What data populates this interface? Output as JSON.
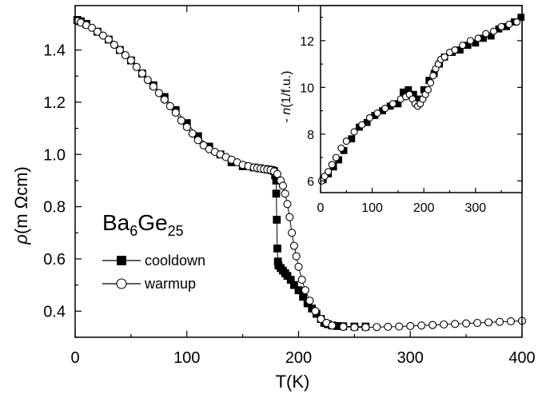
{
  "chart_data": [
    {
      "type": "scatter",
      "title": "",
      "xlabel": "T(K)",
      "ylabel": "ρ(m Ωcm)",
      "ylabel_parts": {
        "symbol": "ρ",
        "unit": "(m Ωcm)"
      },
      "xlim": [
        0,
        400
      ],
      "ylim": [
        0.3,
        1.57
      ],
      "xticks": [
        0,
        100,
        200,
        300,
        400
      ],
      "yticks": [
        0.4,
        0.6,
        0.8,
        1.0,
        1.2,
        1.4
      ],
      "xtick_labels": [
        "0",
        "100",
        "200",
        "300",
        "400"
      ],
      "ytick_labels": [
        "0.4",
        "0.6",
        "0.8",
        "1.0",
        "1.2",
        "1.4"
      ],
      "grid": false,
      "sample_label": {
        "base1": "Ba",
        "sub1": "6",
        "base2": "Ge",
        "sub2": "25"
      },
      "legend": {
        "placement": "lower-left"
      },
      "series": [
        {
          "name": "cooldown",
          "marker": "filled-square",
          "color": "#000000",
          "connected": true,
          "x": [
            2,
            5,
            10,
            20,
            30,
            40,
            50,
            60,
            70,
            80,
            90,
            100,
            110,
            120,
            130,
            140,
            150,
            160,
            165,
            170,
            173,
            176,
            178,
            179,
            180,
            180,
            180.5,
            181,
            181.5,
            182,
            184,
            186,
            188,
            190,
            193,
            196,
            200,
            204,
            208,
            212,
            216,
            220,
            223,
            226,
            230,
            235,
            240,
            250,
            260
          ],
          "y": [
            1.515,
            1.51,
            1.5,
            1.47,
            1.44,
            1.4,
            1.36,
            1.31,
            1.265,
            1.22,
            1.17,
            1.12,
            1.07,
            1.03,
            1.0,
            0.97,
            0.955,
            0.95,
            0.947,
            0.944,
            0.942,
            0.94,
            0.937,
            0.92,
            0.9,
            0.85,
            0.75,
            0.64,
            0.59,
            0.575,
            0.565,
            0.555,
            0.545,
            0.535,
            0.52,
            0.5,
            0.48,
            0.455,
            0.43,
            0.41,
            0.39,
            0.37,
            0.355,
            0.35,
            0.345,
            0.343,
            0.342,
            0.341,
            0.341
          ]
        },
        {
          "name": "warmup",
          "marker": "open-circle",
          "color": "#000000",
          "connected": true,
          "x": [
            2,
            5,
            10,
            15,
            20,
            25,
            30,
            35,
            40,
            45,
            50,
            55,
            60,
            65,
            70,
            75,
            80,
            85,
            90,
            95,
            100,
            105,
            110,
            115,
            120,
            125,
            130,
            135,
            140,
            145,
            150,
            155,
            160,
            163,
            166,
            169,
            172,
            175,
            178,
            181,
            184,
            186,
            188,
            190,
            192,
            194,
            196,
            198,
            200,
            203,
            206,
            210,
            215,
            220,
            225,
            230,
            240,
            250,
            260,
            270,
            280,
            290,
            300,
            310,
            320,
            330,
            340,
            350,
            360,
            370,
            380,
            390,
            400
          ],
          "y": [
            1.51,
            1.505,
            1.495,
            1.485,
            1.47,
            1.455,
            1.44,
            1.42,
            1.4,
            1.38,
            1.36,
            1.335,
            1.31,
            1.285,
            1.26,
            1.235,
            1.21,
            1.185,
            1.16,
            1.13,
            1.105,
            1.08,
            1.055,
            1.035,
            1.02,
            1.01,
            1.0,
            0.99,
            0.98,
            0.97,
            0.96,
            0.955,
            0.95,
            0.948,
            0.946,
            0.944,
            0.942,
            0.94,
            0.935,
            0.925,
            0.9,
            0.88,
            0.85,
            0.81,
            0.76,
            0.7,
            0.65,
            0.61,
            0.57,
            0.52,
            0.48,
            0.44,
            0.4,
            0.37,
            0.355,
            0.345,
            0.34,
            0.338,
            0.338,
            0.339,
            0.34,
            0.341,
            0.343,
            0.345,
            0.347,
            0.349,
            0.351,
            0.353,
            0.355,
            0.357,
            0.359,
            0.361,
            0.363
          ]
        }
      ]
    },
    {
      "type": "scatter",
      "title": "",
      "xlabel": "",
      "ylabel": "- n(1/f.u.)",
      "ylabel_parts": {
        "prefix": "- ",
        "symbol": "n",
        "unit": "(1/f.u.)"
      },
      "xlim": [
        0,
        390
      ],
      "ylim": [
        5.5,
        13.5
      ],
      "xticks": [
        0,
        100,
        200,
        300
      ],
      "yticks": [
        6,
        8,
        10,
        12
      ],
      "xtick_labels": [
        "0",
        "100",
        "200",
        "300"
      ],
      "ytick_labels": [
        "6",
        "8",
        "10",
        "12"
      ],
      "grid": false,
      "series": [
        {
          "marker": "filled-square",
          "color": "#000000",
          "x": [
            5,
            15,
            25,
            35,
            45,
            60,
            75,
            90,
            105,
            120,
            135,
            150,
            160,
            170,
            180,
            190,
            200,
            210,
            220,
            230,
            240,
            255,
            270,
            285,
            300,
            315,
            330,
            345,
            360,
            375,
            388
          ],
          "y": [
            6.05,
            6.3,
            6.6,
            6.9,
            7.3,
            7.8,
            8.3,
            8.5,
            8.8,
            9.0,
            9.2,
            9.3,
            9.8,
            9.9,
            9.7,
            9.5,
            9.9,
            10.3,
            10.6,
            11.0,
            11.3,
            11.5,
            11.6,
            11.8,
            11.9,
            12.1,
            12.2,
            12.5,
            12.6,
            12.8,
            13.0
          ]
        },
        {
          "marker": "open-circle",
          "color": "#000000",
          "x": [
            2,
            8,
            15,
            22,
            30,
            40,
            50,
            65,
            80,
            95,
            110,
            125,
            140,
            155,
            165,
            172,
            178,
            183,
            188,
            193,
            198,
            203,
            208,
            213,
            218,
            223,
            228,
            233,
            240,
            250,
            260,
            275,
            290,
            305,
            320,
            335,
            350,
            365,
            380
          ],
          "y": [
            6.0,
            6.2,
            6.4,
            6.7,
            7.0,
            7.4,
            7.7,
            8.1,
            8.4,
            8.7,
            8.9,
            9.1,
            9.3,
            9.5,
            9.6,
            9.7,
            9.5,
            9.3,
            9.2,
            9.3,
            9.5,
            9.7,
            9.9,
            10.2,
            10.5,
            10.8,
            11.0,
            11.2,
            11.3,
            11.5,
            11.6,
            11.8,
            12.0,
            12.1,
            12.3,
            12.4,
            12.6,
            12.7,
            12.8
          ]
        }
      ]
    }
  ]
}
